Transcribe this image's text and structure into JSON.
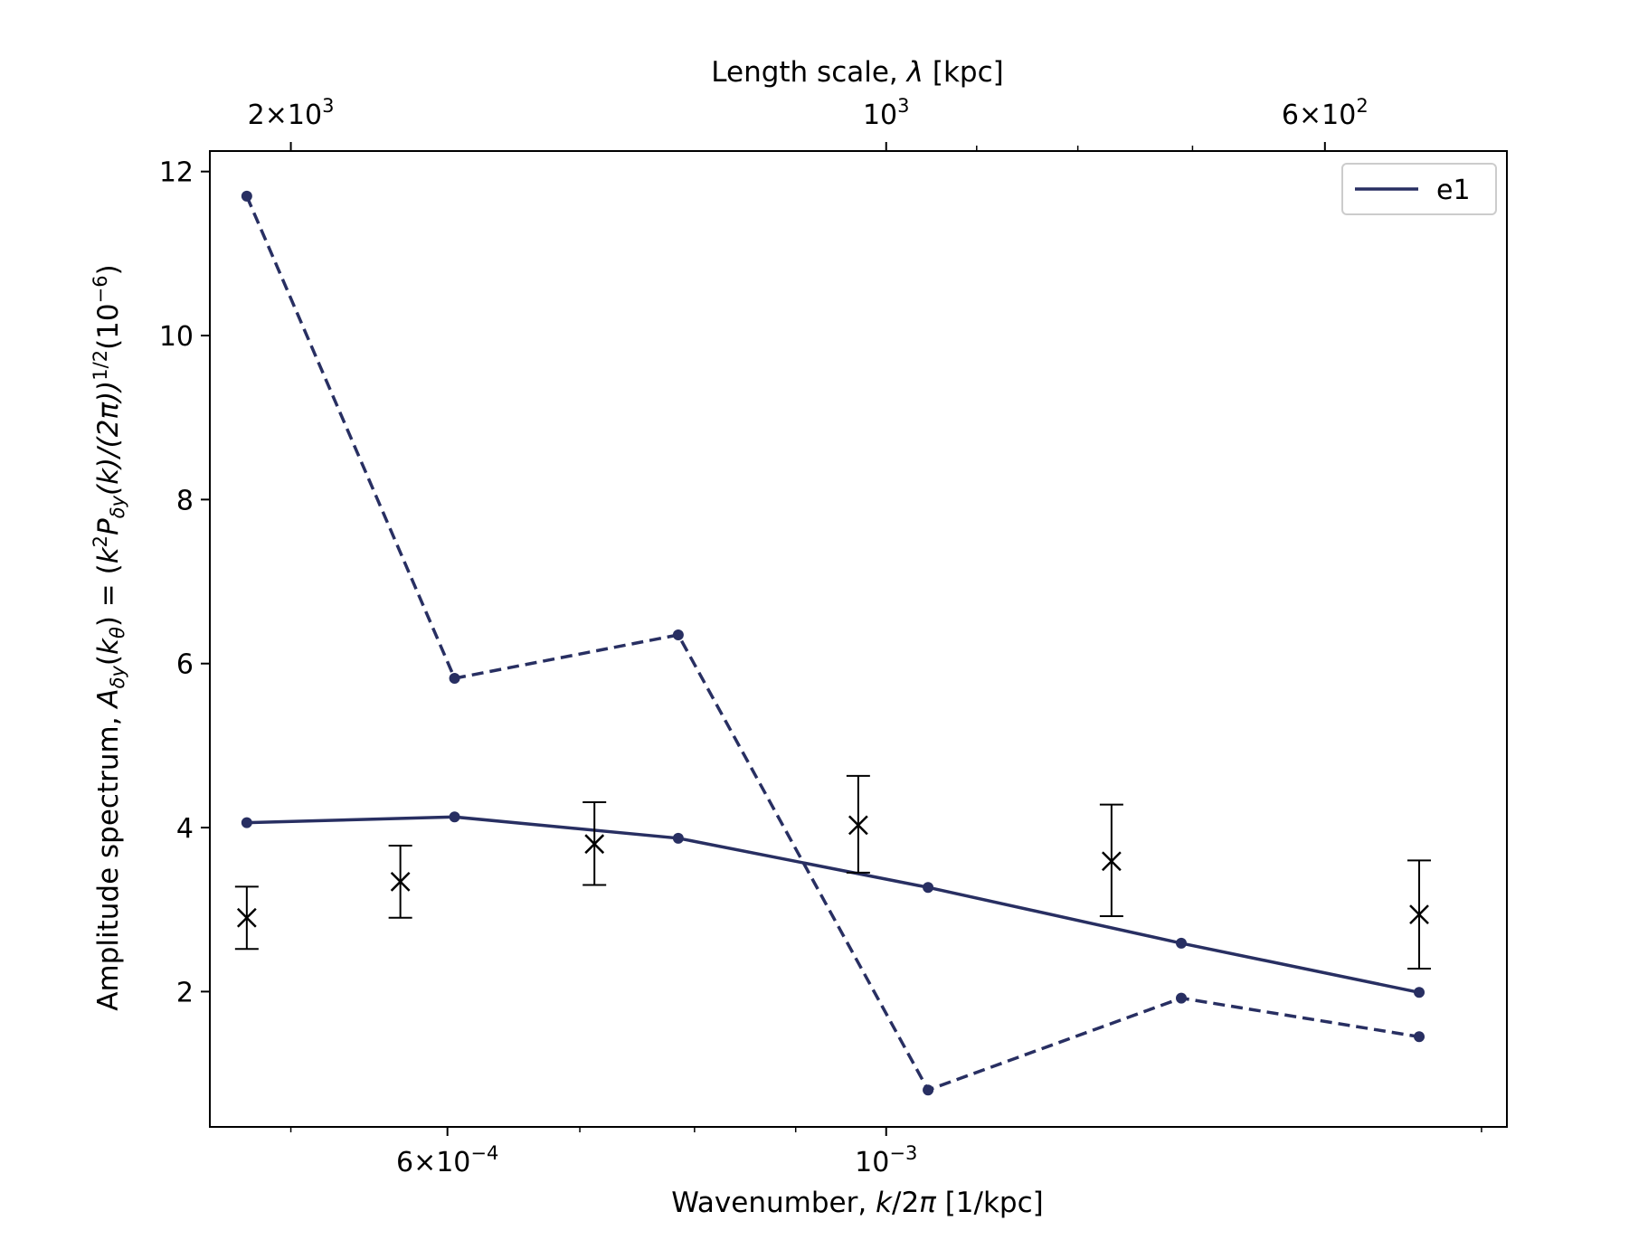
{
  "chart_data": {
    "type": "line",
    "title": "",
    "xlabel": {
      "main": "Wavenumber, ",
      "var": "k",
      "rest": "/2",
      "pi": "π",
      "unit": " [1/kpc]"
    },
    "ylabel": {
      "main": "Amplitude spectrum, ",
      "A": "A",
      "Asub": "δy",
      "open": "(",
      "k": "k",
      "ksub": "θ",
      "eq": ") = (",
      "k2": "k",
      "sup2": "2",
      "P": "P",
      "Psub": "δy",
      "mid": "(k)/(2π))",
      "sup12": "1/2",
      "tail": "(10",
      "supexp": "−6",
      "close": ")"
    },
    "top_xlabel": {
      "main": "Length scale, ",
      "var": "λ",
      "unit": " [kpc]"
    },
    "x_scale": "log",
    "xlim": [
      0.000455,
      0.00206
    ],
    "ylim": [
      0.35,
      12.25
    ],
    "yticks": [
      2,
      4,
      6,
      8,
      10,
      12
    ],
    "xtick_labels": [
      {
        "value": 0.0006,
        "mant": "6",
        "times": "×",
        "base": "10",
        "exp": "−4"
      },
      {
        "value": 0.001,
        "mant": "",
        "times": "",
        "base": "10",
        "exp": "−3"
      }
    ],
    "x_minor_ticks": [
      0.0005,
      0.0007,
      0.0008,
      0.0009,
      0.002
    ],
    "top_xtick_labels": [
      {
        "length": 2000,
        "mant": "2",
        "times": "×",
        "base": "10",
        "exp": "3"
      },
      {
        "length": 1000,
        "mant": "",
        "times": "",
        "base": "10",
        "exp": "3"
      },
      {
        "length": 600,
        "mant": "6",
        "times": "×",
        "base": "10",
        "exp": "2"
      }
    ],
    "top_minor_ticks": [
      900,
      800,
      700
    ],
    "series": [
      {
        "name": "e1",
        "style": "solid",
        "color": "#282f62",
        "x": [
          0.000475,
          0.000605,
          0.000785,
          0.00105,
          0.00141,
          0.00186
        ],
        "y": [
          4.06,
          4.13,
          3.87,
          3.27,
          2.59,
          1.99
        ]
      },
      {
        "style": "dashed",
        "color": "#282f62",
        "x": [
          0.000475,
          0.000605,
          0.000785,
          0.00105,
          0.00141,
          0.00186
        ],
        "y": [
          11.7,
          5.82,
          6.35,
          0.8,
          1.92,
          1.45
        ]
      }
    ],
    "errorbar_series": {
      "color": "#000000",
      "marker": "x",
      "x": [
        0.000475,
        0.000568,
        0.000712,
        0.000968,
        0.0013,
        0.00186
      ],
      "y": [
        2.9,
        3.34,
        3.8,
        4.03,
        3.59,
        2.94
      ],
      "yerr_low": [
        2.52,
        2.9,
        3.3,
        3.45,
        2.92,
        2.28
      ],
      "yerr_high": [
        3.28,
        3.78,
        4.31,
        4.63,
        4.28,
        3.6
      ]
    },
    "legend": {
      "placement": "top-right",
      "entries": [
        "e1"
      ]
    },
    "grid": false
  }
}
